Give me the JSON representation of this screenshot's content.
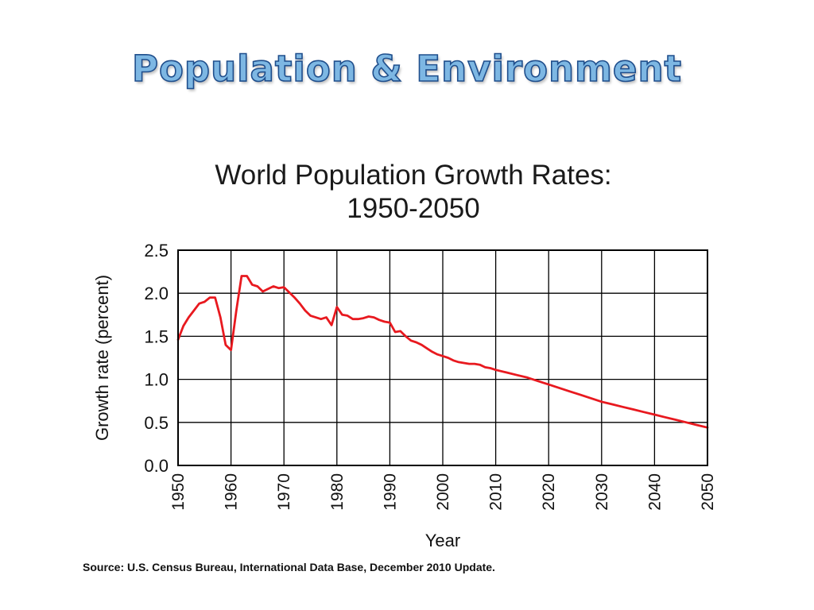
{
  "slide": {
    "title": "Population & Environment"
  },
  "source": "Source: U.S. Census Bureau, International Data Base, December 2010 Update.",
  "colors": {
    "line": "#e8191f",
    "grid": "#000000",
    "title_fill": "#7db7e3",
    "title_outline": "#1f4e8c"
  },
  "chart_data": {
    "type": "line",
    "title": [
      "World Population Growth Rates:",
      "1950-2050"
    ],
    "xlabel": "Year",
    "ylabel": "Growth rate (percent)",
    "xlim": [
      1950,
      2050
    ],
    "ylim": [
      0,
      2.5
    ],
    "x_ticks": [
      1950,
      1960,
      1970,
      1980,
      1990,
      2000,
      2010,
      2020,
      2030,
      2040,
      2050
    ],
    "y_ticks": [
      0.0,
      0.5,
      1.0,
      1.5,
      2.0,
      2.5
    ],
    "y_tick_labels": [
      "0.0",
      "0.5",
      "1.0",
      "1.5",
      "2.0",
      "2.5"
    ],
    "grid": true,
    "legend": "none",
    "series": [
      {
        "color": "#e8191f",
        "x": [
          1950,
          1951,
          1952,
          1953,
          1954,
          1955,
          1956,
          1957,
          1958,
          1959,
          1960,
          1961,
          1962,
          1963,
          1964,
          1965,
          1966,
          1967,
          1968,
          1969,
          1970,
          1971,
          1972,
          1973,
          1974,
          1975,
          1976,
          1977,
          1978,
          1979,
          1980,
          1981,
          1982,
          1983,
          1984,
          1985,
          1986,
          1987,
          1988,
          1989,
          1990,
          1991,
          1992,
          1993,
          1994,
          1995,
          1996,
          1997,
          1998,
          1999,
          2000,
          2001,
          2002,
          2003,
          2004,
          2005,
          2006,
          2007,
          2008,
          2009,
          2010,
          2012,
          2014,
          2016,
          2018,
          2020,
          2022,
          2024,
          2026,
          2028,
          2030,
          2032,
          2034,
          2036,
          2038,
          2040,
          2042,
          2044,
          2046,
          2048,
          2050
        ],
        "y": [
          1.46,
          1.62,
          1.72,
          1.8,
          1.88,
          1.9,
          1.95,
          1.95,
          1.72,
          1.4,
          1.34,
          1.8,
          2.2,
          2.2,
          2.1,
          2.08,
          2.02,
          2.05,
          2.08,
          2.06,
          2.07,
          2.01,
          1.95,
          1.88,
          1.8,
          1.74,
          1.72,
          1.7,
          1.72,
          1.63,
          1.84,
          1.75,
          1.74,
          1.7,
          1.7,
          1.71,
          1.73,
          1.72,
          1.69,
          1.67,
          1.66,
          1.55,
          1.56,
          1.5,
          1.45,
          1.43,
          1.4,
          1.36,
          1.32,
          1.29,
          1.27,
          1.25,
          1.22,
          1.2,
          1.19,
          1.18,
          1.18,
          1.17,
          1.14,
          1.13,
          1.11,
          1.08,
          1.05,
          1.02,
          0.98,
          0.94,
          0.9,
          0.86,
          0.82,
          0.78,
          0.74,
          0.71,
          0.68,
          0.65,
          0.62,
          0.59,
          0.56,
          0.53,
          0.5,
          0.47,
          0.44
        ]
      }
    ]
  }
}
